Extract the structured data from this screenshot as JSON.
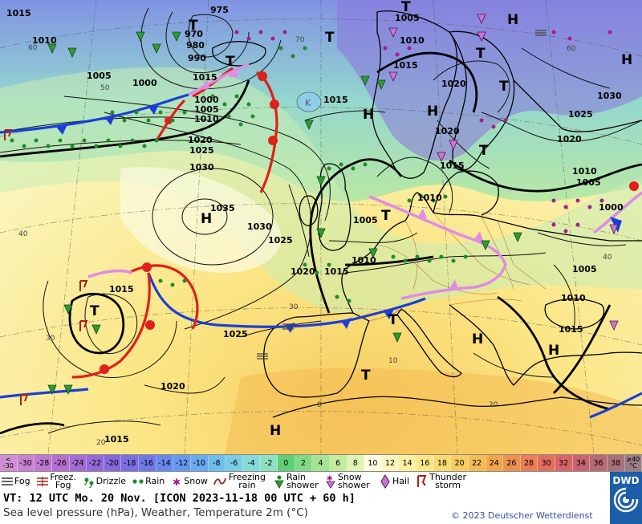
{
  "map": {
    "pressure_labels": [
      "1015",
      "1010",
      "1005",
      "1000",
      "975",
      "970",
      "980",
      "990",
      "1000",
      "1005",
      "1010",
      "1020",
      "1025",
      "1030",
      "1035",
      "1030",
      "1025",
      "1020",
      "1015",
      "1015",
      "1010",
      "1005",
      "1010",
      "1015",
      "1020",
      "1005",
      "1015",
      "1020",
      "1025",
      "1030",
      "1010",
      "1005",
      "1000",
      "1005",
      "1010",
      "1015",
      "1020",
      "1015",
      "1025",
      "1020",
      "1015",
      "1010",
      "1015"
    ],
    "pressure_system_labels": [
      "T",
      "H",
      "T",
      "T",
      "T",
      "T",
      "H",
      "H",
      "T",
      "T",
      "H",
      "T",
      "T",
      "H",
      "T",
      "H",
      "H",
      "T",
      "H"
    ],
    "temperature_labels": [
      "60",
      "50",
      "40",
      "30",
      "20",
      "70",
      "60",
      "40",
      "30",
      "20",
      "0",
      "10"
    ]
  },
  "scale": {
    "cells": [
      {
        "label": "< -30",
        "color": "#d08fd4"
      },
      {
        "label": "-30",
        "color": "#c982cf"
      },
      {
        "label": "-28",
        "color": "#bf78cf"
      },
      {
        "label": "-26",
        "color": "#b46fd0"
      },
      {
        "label": "-24",
        "color": "#a56ad3"
      },
      {
        "label": "-22",
        "color": "#9468d8"
      },
      {
        "label": "-20",
        "color": "#8667dc"
      },
      {
        "label": "-18",
        "color": "#7a6ee2"
      },
      {
        "label": "-16",
        "color": "#6e78e8"
      },
      {
        "label": "-14",
        "color": "#6688ec"
      },
      {
        "label": "-12",
        "color": "#6699ee"
      },
      {
        "label": "-10",
        "color": "#69abee"
      },
      {
        "label": "-8",
        "color": "#6fbdea"
      },
      {
        "label": "-6",
        "color": "#79cde4"
      },
      {
        "label": "-4",
        "color": "#86d9d7"
      },
      {
        "label": "-2",
        "color": "#8ee0c3"
      },
      {
        "label": "0",
        "color": "#5fcf75"
      },
      {
        "label": "2",
        "color": "#7fda83"
      },
      {
        "label": "4",
        "color": "#a3e392"
      },
      {
        "label": "6",
        "color": "#c4ec9f"
      },
      {
        "label": "8",
        "color": "#e2f4b4"
      },
      {
        "label": "10",
        "color": "#fbfbe0"
      },
      {
        "label": "12",
        "color": "#fbf6bf"
      },
      {
        "label": "14",
        "color": "#fbefa0"
      },
      {
        "label": "16",
        "color": "#fbe686"
      },
      {
        "label": "18",
        "color": "#f9da70"
      },
      {
        "label": "20",
        "color": "#f7cc5f"
      },
      {
        "label": "22",
        "color": "#f4bb52"
      },
      {
        "label": "24",
        "color": "#f2a64c"
      },
      {
        "label": "26",
        "color": "#ef914c"
      },
      {
        "label": "28",
        "color": "#ec7d54"
      },
      {
        "label": "30",
        "color": "#e36e5e"
      },
      {
        "label": "32",
        "color": "#d86669"
      },
      {
        "label": "34",
        "color": "#c8646f"
      },
      {
        "label": "36",
        "color": "#b76a72"
      },
      {
        "label": "38",
        "color": "#a9727a"
      },
      {
        "label": "≥40 °C",
        "color": "#9b7d84"
      }
    ]
  },
  "legend": {
    "items": [
      {
        "icon": "fog-icon",
        "label": "Fog"
      },
      {
        "icon": "freezing-fog-icon",
        "label": "Freez. Fog"
      },
      {
        "icon": "drizzle-icon",
        "label": "Drizzle"
      },
      {
        "icon": "rain-icon",
        "label": "Rain"
      },
      {
        "icon": "snow-icon",
        "label": "Snow"
      },
      {
        "icon": "freezing-rain-icon",
        "label": "Freezing rain"
      },
      {
        "icon": "rain-shower-icon",
        "label": "Rain shower"
      },
      {
        "icon": "snow-shower-icon",
        "label": "Snow shower"
      },
      {
        "icon": "hail-icon",
        "label": "Hail"
      },
      {
        "icon": "thunderstorm-icon",
        "label": "Thunder storm"
      }
    ]
  },
  "info": {
    "vt_line": "VT: 12 UTC Mo.  20 Nov. [ICON 2023-11-18  00 UTC + 60 h]",
    "description": "Sea level pressure (hPa), Weather, Temperature 2m (°C)",
    "copyright": "© 2023 Deutscher Wetterdienst",
    "logo_text": "DWD"
  },
  "colors": {
    "warm_front": "#e0201a",
    "cold_front": "#1a3fd8",
    "occluded_front": "#e08be6",
    "land_outline": "#000000",
    "rain_green": "#1f8a2a",
    "snow_magenta": "#a0208c"
  }
}
